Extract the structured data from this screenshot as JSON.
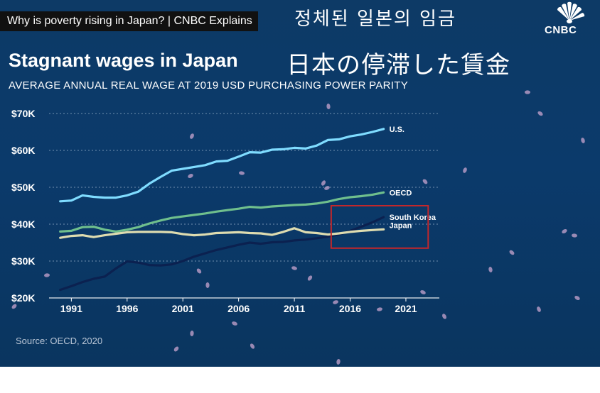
{
  "video_title": "Why is poverty rising in Japan? | CNBC Explains",
  "subtitles": {
    "korean": "정체된  일본의  임금",
    "japanese": "日本の停滞した賃金"
  },
  "logo_text": "CNBC",
  "source": "Source: OECD, 2020",
  "colors": {
    "us": "#7fdcff",
    "oecd": "#6fbf8d",
    "south_korea": "#0b2150",
    "japan": "#dedcb0",
    "highlight": "#c3272b",
    "background": "#0b3a6b"
  },
  "chart_data": {
    "type": "line",
    "title": "Stagnant wages in Japan",
    "subtitle": "AVERAGE ANNUAL REAL WAGE AT 2019 USD PURCHASING POWER PARITY",
    "xlabel": "",
    "ylabel": "",
    "x_ticks": [
      "1991",
      "1996",
      "2001",
      "2006",
      "2011",
      "2016",
      "2021"
    ],
    "y_ticks": [
      "$20K",
      "$30K",
      "$40K",
      "$50K",
      "$60K",
      "$70K"
    ],
    "xlim": [
      1989,
      2024
    ],
    "ylim": [
      20000,
      70000
    ],
    "grid": true,
    "x": [
      1990,
      1991,
      1992,
      1993,
      1994,
      1995,
      1996,
      1997,
      1998,
      1999,
      2000,
      2001,
      2002,
      2003,
      2004,
      2005,
      2006,
      2007,
      2008,
      2009,
      2010,
      2011,
      2012,
      2013,
      2014,
      2015,
      2016,
      2017,
      2018,
      2019
    ],
    "series": [
      {
        "name": "U.S.",
        "values": [
          46200,
          46400,
          47800,
          47400,
          47200,
          47200,
          47800,
          48800,
          51000,
          52800,
          54500,
          55000,
          55500,
          56000,
          57000,
          57200,
          58300,
          59500,
          59400,
          60200,
          60300,
          60700,
          60500,
          61300,
          62800,
          63000,
          63800,
          64300,
          65000,
          65800
        ]
      },
      {
        "name": "OECD",
        "values": [
          38000,
          38200,
          39200,
          39300,
          38500,
          38000,
          38500,
          39200,
          40200,
          41000,
          41700,
          42100,
          42500,
          42900,
          43400,
          43800,
          44200,
          44700,
          44500,
          44800,
          45000,
          45200,
          45300,
          45600,
          46100,
          46800,
          47300,
          47600,
          48000,
          48600
        ]
      },
      {
        "name": "South Korea",
        "values": [
          22200,
          23200,
          24300,
          25200,
          25800,
          28000,
          29900,
          29600,
          28900,
          28800,
          29100,
          30000,
          31200,
          32100,
          33000,
          33700,
          34400,
          35000,
          34700,
          35100,
          35200,
          35600,
          35800,
          36200,
          36600,
          37200,
          38200,
          39300,
          40500,
          41900
        ]
      },
      {
        "name": "Japan",
        "values": [
          36300,
          36800,
          37000,
          36500,
          37000,
          37400,
          37800,
          37900,
          37900,
          37900,
          37800,
          37300,
          37000,
          37200,
          37600,
          37700,
          37800,
          37600,
          37500,
          37100,
          37900,
          38900,
          37800,
          37600,
          37200,
          37500,
          37900,
          38200,
          38400,
          38600
        ]
      }
    ],
    "legend": "inline labels at line ends",
    "highlight_box": {
      "x_range": [
        2014.3,
        2023
      ],
      "y_range": [
        33500,
        45000
      ]
    }
  }
}
